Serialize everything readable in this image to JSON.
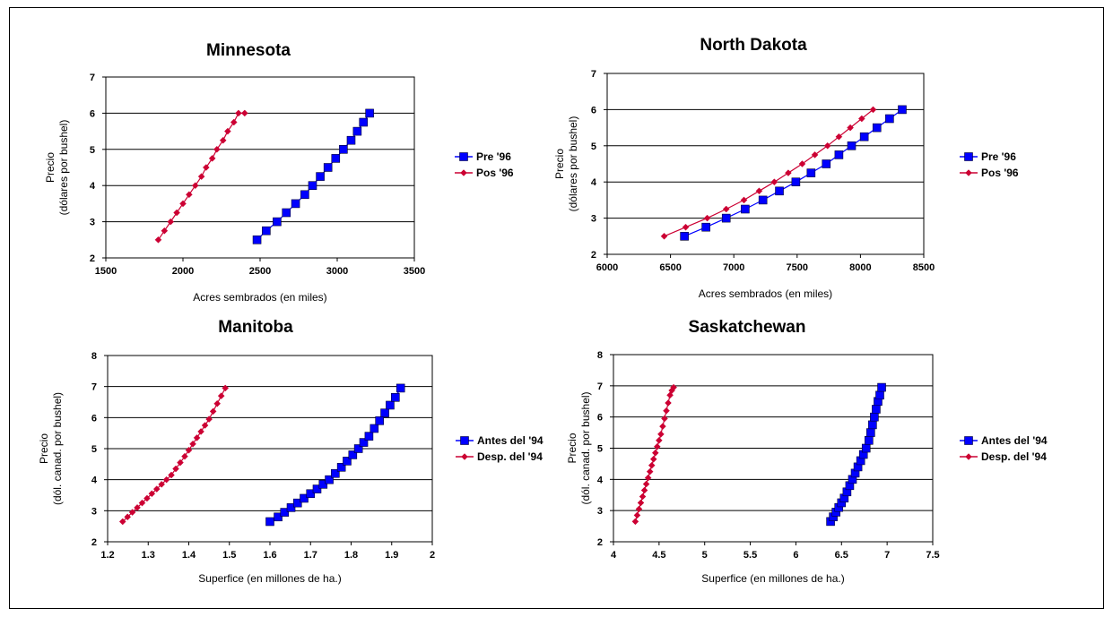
{
  "chart_data": [
    {
      "type": "line",
      "title": "Minnesota",
      "xlabel": "Acres sembrados (en miles)",
      "ylabel": [
        "Precio",
        "(dólares por bushel)"
      ],
      "xlim": [
        1500,
        3500
      ],
      "ylim": [
        2,
        7
      ],
      "xticks": [
        "1500",
        "2000",
        "2500",
        "3000",
        "3500"
      ],
      "yticks": [
        "2",
        "3",
        "4",
        "5",
        "6",
        "7"
      ],
      "grid": "horizontal",
      "legend_position": "right",
      "series": [
        {
          "name": "Pre '96",
          "marker": "square",
          "color": "#0000ff",
          "x": [
            2480,
            2540,
            2610,
            2670,
            2730,
            2790,
            2840,
            2890,
            2940,
            2990,
            3040,
            3090,
            3130,
            3170,
            3210
          ],
          "y": [
            2.5,
            2.75,
            3.0,
            3.25,
            3.5,
            3.75,
            4.0,
            4.25,
            4.5,
            4.75,
            5.0,
            5.25,
            5.5,
            5.75,
            6.0
          ]
        },
        {
          "name": "Pos '96",
          "marker": "diamond",
          "color": "#cc0033",
          "x": [
            1840,
            1880,
            1920,
            1960,
            2000,
            2040,
            2080,
            2120,
            2150,
            2190,
            2220,
            2260,
            2290,
            2330,
            2360,
            2400
          ],
          "y": [
            2.5,
            2.75,
            3.0,
            3.25,
            3.5,
            3.75,
            4.0,
            4.25,
            4.5,
            4.75,
            5.0,
            5.25,
            5.5,
            5.75,
            6.0,
            6.0
          ]
        }
      ]
    },
    {
      "type": "line",
      "title": "North Dakota",
      "xlabel": "Acres sembrados (en miles)",
      "ylabel": [
        "Precio",
        "(dólares por bushel)"
      ],
      "xlim": [
        6000,
        8500
      ],
      "ylim": [
        2,
        7
      ],
      "xticks": [
        "6000",
        "6500",
        "7000",
        "7500",
        "8000",
        "8500"
      ],
      "yticks": [
        "2",
        "3",
        "4",
        "5",
        "6",
        "7"
      ],
      "grid": "horizontal",
      "legend_position": "right",
      "series": [
        {
          "name": "Pre '96",
          "marker": "square",
          "color": "#0000ff",
          "x": [
            6610,
            6780,
            6940,
            7090,
            7230,
            7360,
            7490,
            7610,
            7730,
            7830,
            7930,
            8030,
            8130,
            8230,
            8330
          ],
          "y": [
            2.5,
            2.75,
            3.0,
            3.25,
            3.5,
            3.75,
            4.0,
            4.25,
            4.5,
            4.75,
            5.0,
            5.25,
            5.5,
            5.75,
            6.0
          ]
        },
        {
          "name": "Pos '96",
          "marker": "diamond",
          "color": "#cc0033",
          "x": [
            6450,
            6620,
            6790,
            6940,
            7080,
            7200,
            7320,
            7430,
            7540,
            7640,
            7740,
            7830,
            7920,
            8010,
            8100
          ],
          "y": [
            2.5,
            2.75,
            3.0,
            3.25,
            3.5,
            3.75,
            4.0,
            4.25,
            4.5,
            4.75,
            5.0,
            5.25,
            5.5,
            5.75,
            6.0
          ]
        }
      ]
    },
    {
      "type": "line",
      "title": "Manitoba",
      "xlabel": "Superfice (en millones de ha.)",
      "ylabel": [
        "Precio",
        "(dól. canad. por bushel)"
      ],
      "xlim": [
        1.2,
        2
      ],
      "ylim": [
        2,
        8
      ],
      "xticks": [
        "1.2",
        "1.3",
        "1.4",
        "1.5",
        "1.6",
        "1.7",
        "1.8",
        "1.9",
        "2"
      ],
      "yticks": [
        "2",
        "3",
        "4",
        "5",
        "6",
        "7",
        "8"
      ],
      "grid": "horizontal",
      "legend_position": "right",
      "series": [
        {
          "name": "Antes del '94",
          "marker": "square",
          "color": "#0000ff",
          "x": [
            1.6,
            1.62,
            1.636,
            1.652,
            1.668,
            1.684,
            1.7,
            1.716,
            1.731,
            1.746,
            1.761,
            1.776,
            1.79,
            1.804,
            1.818,
            1.831,
            1.844,
            1.857,
            1.87,
            1.883,
            1.896,
            1.909,
            1.922
          ],
          "y": [
            2.65,
            2.8,
            2.95,
            3.1,
            3.25,
            3.4,
            3.55,
            3.7,
            3.85,
            4.0,
            4.2,
            4.4,
            4.6,
            4.8,
            5.0,
            5.2,
            5.4,
            5.65,
            5.9,
            6.15,
            6.4,
            6.65,
            6.95
          ]
        },
        {
          "name": "Desp. del '94",
          "marker": "diamond",
          "color": "#cc0033",
          "x": [
            1.237,
            1.249,
            1.261,
            1.273,
            1.285,
            1.297,
            1.309,
            1.321,
            1.333,
            1.345,
            1.357,
            1.368,
            1.379,
            1.39,
            1.4,
            1.41,
            1.42,
            1.43,
            1.44,
            1.45,
            1.46,
            1.47,
            1.48,
            1.49
          ],
          "y": [
            2.65,
            2.8,
            2.95,
            3.1,
            3.25,
            3.4,
            3.55,
            3.7,
            3.85,
            4.0,
            4.15,
            4.35,
            4.55,
            4.75,
            4.95,
            5.15,
            5.35,
            5.55,
            5.75,
            5.95,
            6.2,
            6.45,
            6.7,
            6.95
          ]
        }
      ]
    },
    {
      "type": "line",
      "title": "Saskatchewan",
      "xlabel": "Superfice (en millones de ha.)",
      "ylabel": [
        "Precio",
        "(dól. canad. por bushel)"
      ],
      "xlim": [
        4,
        7.5
      ],
      "ylim": [
        2,
        8
      ],
      "xticks": [
        "4",
        "4.5",
        "5",
        "5.5",
        "6",
        "6.5",
        "7",
        "7.5"
      ],
      "yticks": [
        "2",
        "3",
        "4",
        "5",
        "6",
        "7",
        "8"
      ],
      "grid": "horizontal",
      "legend_position": "right",
      "series": [
        {
          "name": "Antes del '94",
          "marker": "square",
          "color": "#0000ff",
          "x": [
            6.38,
            6.41,
            6.44,
            6.47,
            6.5,
            6.53,
            6.56,
            6.59,
            6.62,
            6.65,
            6.68,
            6.71,
            6.74,
            6.77,
            6.8,
            6.82,
            6.84,
            6.86,
            6.88,
            6.9,
            6.92,
            6.94
          ],
          "y": [
            2.65,
            2.8,
            2.95,
            3.1,
            3.25,
            3.4,
            3.6,
            3.8,
            4.0,
            4.2,
            4.4,
            4.6,
            4.8,
            5.0,
            5.25,
            5.5,
            5.75,
            6.0,
            6.25,
            6.5,
            6.7,
            6.95
          ]
        },
        {
          "name": "Desp. del '94",
          "marker": "diamond",
          "color": "#cc0033",
          "x": [
            4.24,
            4.26,
            4.28,
            4.3,
            4.32,
            4.34,
            4.36,
            4.38,
            4.4,
            4.42,
            4.44,
            4.46,
            4.48,
            4.5,
            4.52,
            4.54,
            4.56,
            4.58,
            4.6,
            4.62,
            4.64,
            4.66
          ],
          "y": [
            2.65,
            2.85,
            3.05,
            3.25,
            3.45,
            3.65,
            3.85,
            4.05,
            4.25,
            4.45,
            4.65,
            4.85,
            5.05,
            5.25,
            5.45,
            5.7,
            5.95,
            6.2,
            6.45,
            6.7,
            6.85,
            6.95
          ]
        }
      ]
    }
  ]
}
